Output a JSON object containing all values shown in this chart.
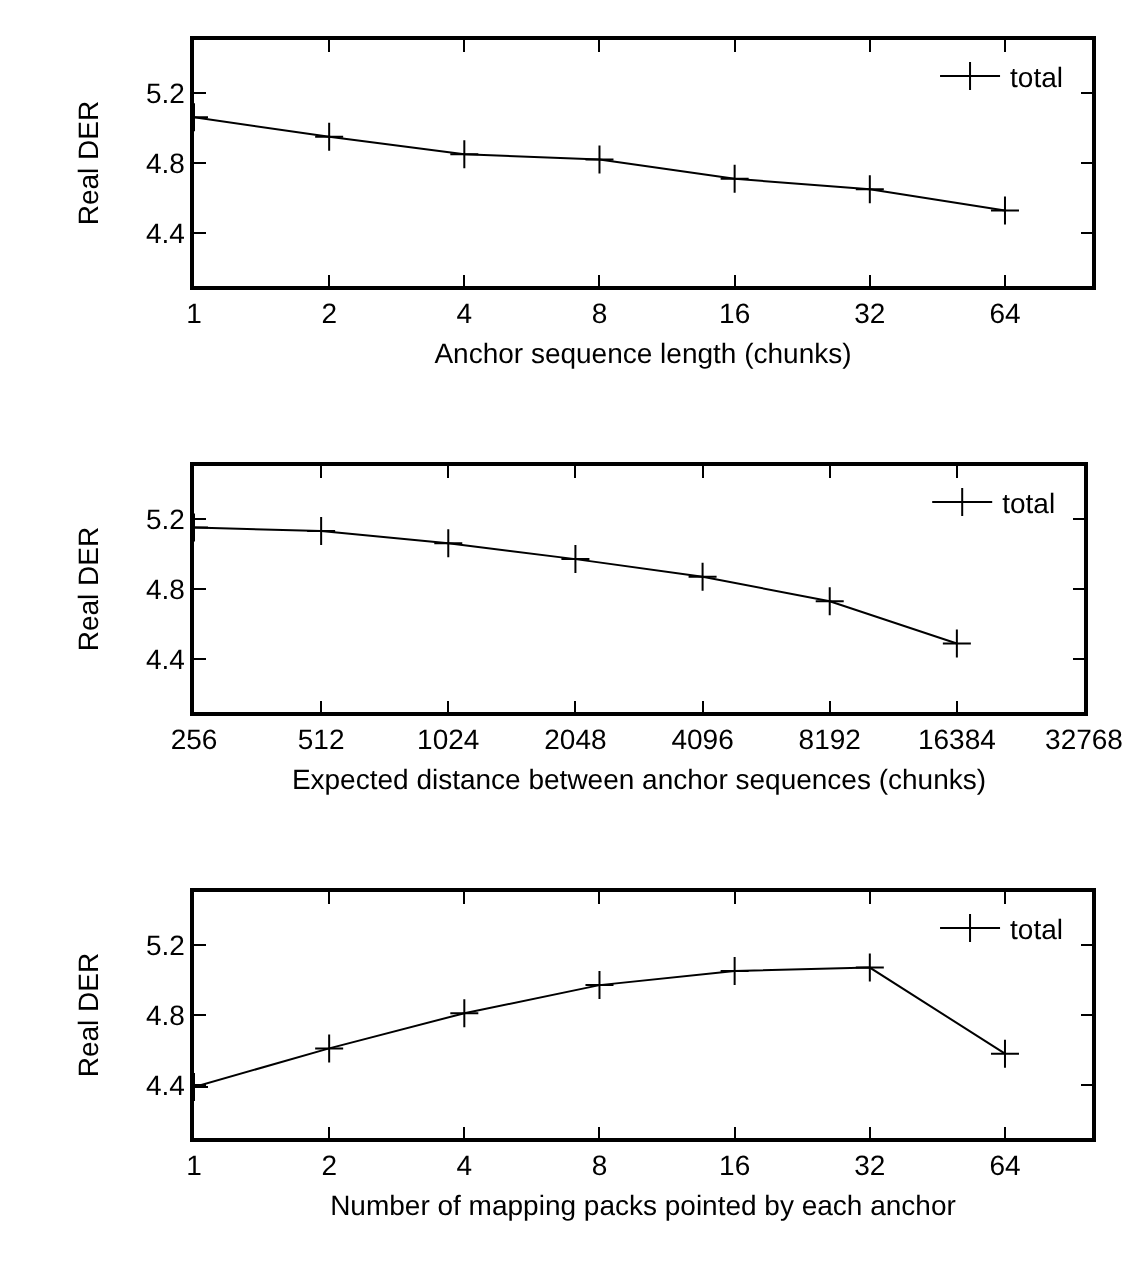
{
  "chart_data": [
    {
      "type": "line",
      "xlabel": "Anchor sequence length (chunks)",
      "ylabel": "Real DER",
      "x": [
        1,
        2,
        4,
        8,
        16,
        32,
        64
      ],
      "series": [
        {
          "name": "total",
          "color": "#000000",
          "values": [
            5.06,
            4.95,
            4.85,
            4.82,
            4.71,
            4.65,
            4.53
          ]
        }
      ],
      "xlim": [
        1,
        100
      ],
      "xticks": [
        1,
        2,
        4,
        8,
        16,
        32,
        64
      ],
      "ylim": [
        4.1,
        5.5
      ],
      "yticks": [
        4.4,
        4.8,
        5.2
      ],
      "log": "x",
      "legend": "top right",
      "marker": "cross",
      "line_style": "solid",
      "grid": false
    },
    {
      "type": "line",
      "xlabel": "Expected distance between anchor sequences (chunks)",
      "ylabel": "Real DER",
      "x": [
        256,
        512,
        1024,
        2048,
        4096,
        8192,
        16384
      ],
      "series": [
        {
          "name": "total",
          "color": "#000000",
          "values": [
            5.15,
            5.13,
            5.06,
            4.97,
            4.87,
            4.73,
            4.49
          ]
        }
      ],
      "xlim": [
        256,
        32768
      ],
      "xticks": [
        256,
        512,
        1024,
        2048,
        4096,
        8192,
        16384,
        32768
      ],
      "ylim": [
        4.1,
        5.5
      ],
      "yticks": [
        4.4,
        4.8,
        5.2
      ],
      "log": "x",
      "legend": "top right",
      "marker": "cross",
      "line_style": "solid",
      "grid": false
    },
    {
      "type": "line",
      "xlabel": "Number of mapping packs pointed by each anchor",
      "ylabel": "Real DER",
      "x": [
        1,
        2,
        4,
        8,
        16,
        32,
        64
      ],
      "series": [
        {
          "name": "total",
          "color": "#000000",
          "values": [
            4.39,
            4.61,
            4.81,
            4.97,
            5.05,
            5.07,
            4.58
          ]
        }
      ],
      "xlim": [
        1,
        100
      ],
      "xticks": [
        1,
        2,
        4,
        8,
        16,
        32,
        64
      ],
      "ylim": [
        4.1,
        5.5
      ],
      "yticks": [
        4.4,
        4.8,
        5.2
      ],
      "log": "x",
      "legend": "top right",
      "marker": "cross",
      "line_style": "solid",
      "grid": false
    }
  ]
}
